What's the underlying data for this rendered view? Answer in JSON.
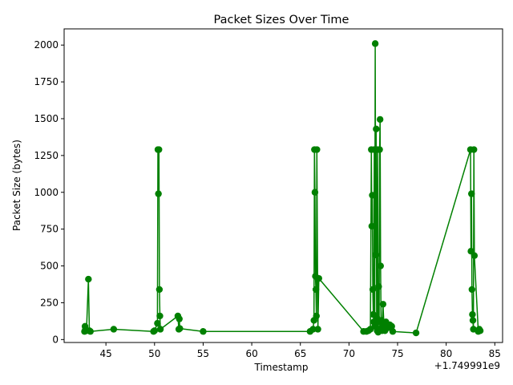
{
  "chart_data": {
    "type": "line",
    "title": "Packet Sizes Over Time",
    "xlabel": "Timestamp",
    "ylabel": "Packet Size (bytes)",
    "x_offset_label": "+1.749991e9",
    "xlim": [
      40.7,
      85.8
    ],
    "ylim": [
      -20,
      2110
    ],
    "xticks": [
      45,
      50,
      55,
      60,
      65,
      70,
      75,
      80,
      85
    ],
    "yticks": [
      0,
      250,
      500,
      750,
      1000,
      1250,
      1500,
      1750,
      2000
    ],
    "grid": false,
    "legend": "none",
    "color": "#008000",
    "marker": "circle",
    "series": [
      {
        "x": [
          42.8,
          42.85,
          42.9,
          43.0,
          43.2,
          43.3,
          43.4,
          45.8,
          49.9,
          50.0,
          50.3,
          50.35,
          50.4,
          50.45,
          50.5,
          50.55,
          50.6,
          52.4,
          52.5,
          52.55,
          52.6,
          55.0,
          66.0,
          66.3,
          66.4,
          66.45,
          66.5,
          66.55,
          66.6,
          66.65,
          66.7,
          66.8,
          66.9,
          71.5,
          71.8,
          72.0,
          72.2,
          72.3,
          72.35,
          72.4,
          72.45,
          72.5,
          72.55,
          72.6,
          72.65,
          72.7,
          72.75,
          72.8,
          72.85,
          72.9,
          72.95,
          73.0,
          73.05,
          73.1,
          73.15,
          73.2,
          73.25,
          73.3,
          73.35,
          73.4,
          73.5,
          73.6,
          73.7,
          73.8,
          74.0,
          74.2,
          74.4,
          74.5,
          76.9,
          82.5,
          82.55,
          82.6,
          82.65,
          82.7,
          82.75,
          82.8,
          82.85,
          82.9,
          83.3,
          83.4,
          83.5
        ],
        "y": [
          55,
          90,
          70,
          60,
          410,
          60,
          55,
          70,
          55,
          60,
          110,
          1290,
          990,
          1290,
          340,
          160,
          70,
          160,
          70,
          140,
          75,
          55,
          55,
          70,
          130,
          1290,
          1000,
          430,
          340,
          160,
          1290,
          70,
          415,
          55,
          55,
          60,
          70,
          1290,
          770,
          980,
          340,
          170,
          120,
          1290,
          90,
          2010,
          575,
          1430,
          150,
          60,
          1290,
          50,
          360,
          120,
          1290,
          1495,
          500,
          130,
          80,
          60,
          240,
          100,
          60,
          120,
          80,
          100,
          90,
          55,
          45,
          1290,
          600,
          990,
          340,
          170,
          130,
          70,
          1290,
          570,
          55,
          70,
          60
        ]
      }
    ]
  }
}
